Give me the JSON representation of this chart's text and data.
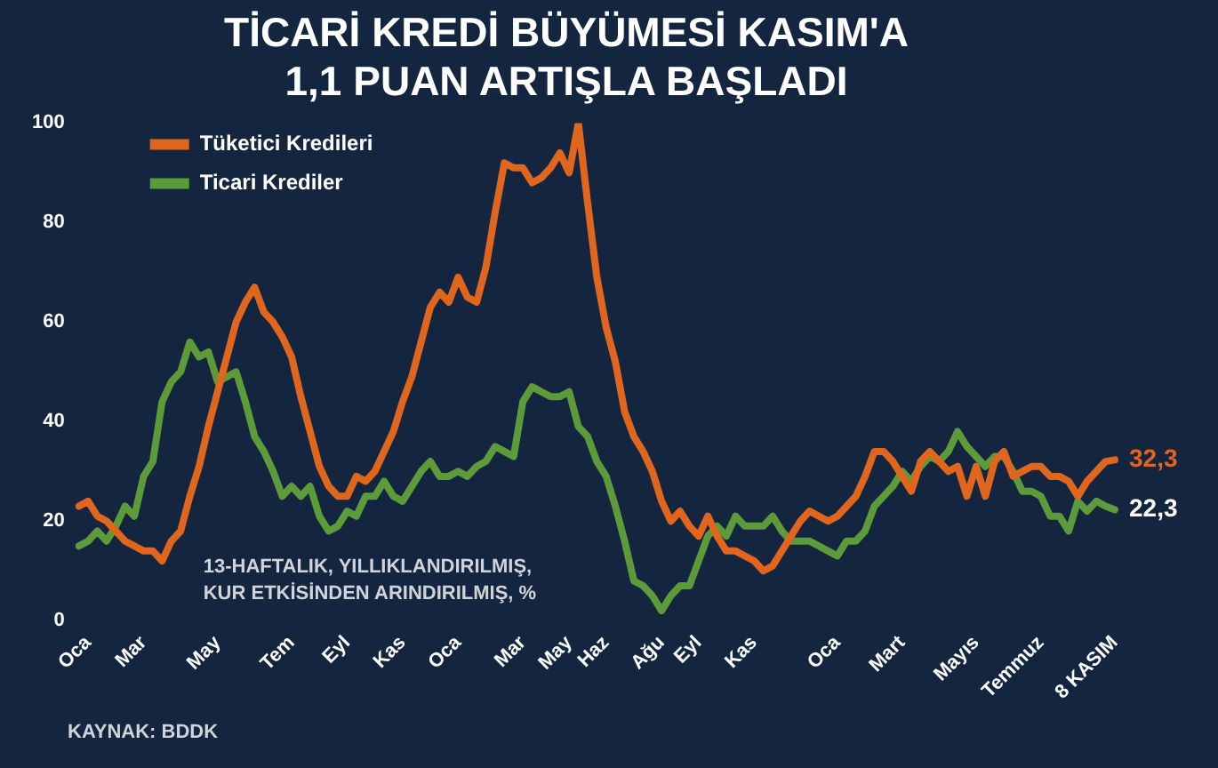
{
  "chart_data": {
    "type": "line",
    "title": "TİCARİ KREDİ BÜYÜMESİ KASIM'A\n1,1 PUAN ARTIŞLA BAŞLADI",
    "categories": [
      null,
      "Oca",
      null,
      null,
      null,
      null,
      null,
      "Mar",
      null,
      null,
      null,
      null,
      null,
      null,
      null,
      "May",
      null,
      null,
      null,
      null,
      null,
      null,
      null,
      "Tem",
      null,
      null,
      null,
      null,
      null,
      "Eyl",
      null,
      null,
      null,
      null,
      null,
      "Kas",
      null,
      null,
      null,
      null,
      null,
      "Oca",
      null,
      null,
      null,
      null,
      null,
      null,
      "Mar",
      null,
      null,
      null,
      null,
      "May",
      null,
      null,
      null,
      "Haz",
      null,
      null,
      null,
      null,
      null,
      "Ağu",
      null,
      null,
      null,
      "Eyl",
      null,
      null,
      null,
      null,
      null,
      "Kas",
      null,
      null,
      null,
      null,
      null,
      null,
      null,
      null,
      "Oca",
      null,
      null,
      null,
      null,
      null,
      null,
      "Mart",
      null,
      null,
      null,
      null,
      null,
      null,
      null,
      "Mayıs",
      null,
      null,
      null,
      null,
      null,
      null,
      "Temmuz",
      null,
      null,
      null,
      null,
      null,
      null,
      null,
      "8 KASIM"
    ],
    "series": [
      {
        "name": "Tüketici Kredileri",
        "color": "#e0661e",
        "values": [
          23,
          24,
          21,
          20,
          18,
          16,
          15,
          14,
          14,
          12,
          16,
          18,
          25,
          31,
          39,
          46,
          53,
          60,
          64,
          67,
          62,
          60,
          57,
          53,
          45,
          38,
          31,
          27,
          25,
          25,
          29,
          28,
          30,
          34,
          38,
          44,
          49,
          56,
          63,
          66,
          64,
          69,
          65,
          64,
          71,
          82,
          92,
          91,
          91,
          88,
          89,
          91,
          94,
          90,
          100,
          84,
          69,
          59,
          52,
          42,
          37,
          34,
          30,
          24,
          20,
          22,
          19,
          17,
          21,
          17,
          14,
          14,
          13,
          12,
          10,
          11,
          14,
          17,
          20,
          22,
          21,
          20,
          21,
          23,
          25,
          29,
          34,
          34,
          32,
          29,
          26,
          32,
          34,
          32,
          30,
          31,
          25,
          31,
          25,
          32,
          34,
          29,
          30,
          31,
          31,
          29,
          29,
          28,
          25,
          28,
          30,
          32,
          32.3
        ],
        "value_labels": [
          null,
          null,
          null,
          null,
          null,
          null,
          null,
          null,
          null,
          null,
          null,
          null,
          null,
          null,
          null,
          null,
          null,
          null,
          null,
          null,
          null,
          null,
          null,
          null,
          null,
          null,
          null,
          null,
          null,
          null,
          null,
          null,
          null,
          null,
          null,
          null,
          null,
          null,
          null,
          null,
          null,
          null,
          null,
          null,
          null,
          null,
          null,
          null,
          null,
          null,
          null,
          null,
          null,
          null,
          null,
          null,
          null,
          null,
          null,
          null,
          null,
          null,
          null,
          null,
          null,
          null,
          null,
          null,
          null,
          null,
          null,
          null,
          null,
          null,
          null,
          null,
          null,
          null,
          null,
          null,
          null,
          null,
          null,
          null,
          null,
          null,
          null,
          null,
          null,
          null,
          null,
          null,
          null,
          null,
          null,
          null,
          null,
          null,
          null,
          null,
          null,
          null,
          null,
          null,
          null,
          null,
          null,
          null,
          null,
          null,
          null,
          null,
          "32,3"
        ]
      },
      {
        "name": "Ticari Krediler",
        "color": "#5c9a3a",
        "values": [
          15,
          16,
          18,
          16,
          19,
          23,
          21,
          29,
          32,
          44,
          48,
          50,
          56,
          53,
          54,
          48,
          49,
          50,
          44,
          37,
          34,
          30,
          25,
          27,
          25,
          27,
          21,
          18,
          19,
          22,
          21,
          25,
          25,
          28,
          25,
          24,
          27,
          30,
          32,
          29,
          29,
          30,
          29,
          31,
          32,
          35,
          34,
          33,
          44,
          47,
          46,
          45,
          45,
          46,
          39,
          37,
          32,
          29,
          23,
          16,
          8,
          7,
          5,
          2,
          5,
          7,
          7,
          12,
          17,
          19,
          17,
          21,
          19,
          19,
          19,
          21,
          18,
          16,
          16,
          16,
          15,
          14,
          13,
          16,
          16,
          18,
          23,
          25,
          27,
          30,
          28,
          31,
          33,
          32,
          34,
          38,
          35,
          33,
          31,
          33,
          33,
          30,
          26,
          26,
          25,
          21,
          21,
          18,
          24,
          22,
          24,
          23,
          22.3
        ],
        "value_labels": [
          null,
          null,
          null,
          null,
          null,
          null,
          null,
          null,
          null,
          null,
          null,
          null,
          null,
          null,
          null,
          null,
          null,
          null,
          null,
          null,
          null,
          null,
          null,
          null,
          null,
          null,
          null,
          null,
          null,
          null,
          null,
          null,
          null,
          null,
          null,
          null,
          null,
          null,
          null,
          null,
          null,
          null,
          null,
          null,
          null,
          null,
          null,
          null,
          null,
          null,
          null,
          null,
          null,
          null,
          null,
          null,
          null,
          null,
          null,
          null,
          null,
          null,
          null,
          null,
          null,
          null,
          null,
          null,
          null,
          null,
          null,
          null,
          null,
          null,
          null,
          null,
          null,
          null,
          null,
          null,
          null,
          null,
          null,
          null,
          null,
          null,
          null,
          null,
          null,
          null,
          null,
          null,
          null,
          null,
          null,
          null,
          null,
          null,
          null,
          null,
          null,
          null,
          null,
          null,
          null,
          null,
          null,
          null,
          null,
          null,
          null,
          null,
          "22,3"
        ]
      }
    ],
    "ylim": [
      0,
      100
    ],
    "yticks": [
      0,
      20,
      40,
      60,
      80,
      100
    ],
    "grid": false,
    "legend": "top left",
    "marker": "none",
    "annotations": [
      "13-HAFTALIK, YILLIKLANDIRILMIŞ,\nKUR ETKİSİNDEN ARINDIRILMIŞ, %",
      "KAYNAK: BDDK"
    ]
  }
}
